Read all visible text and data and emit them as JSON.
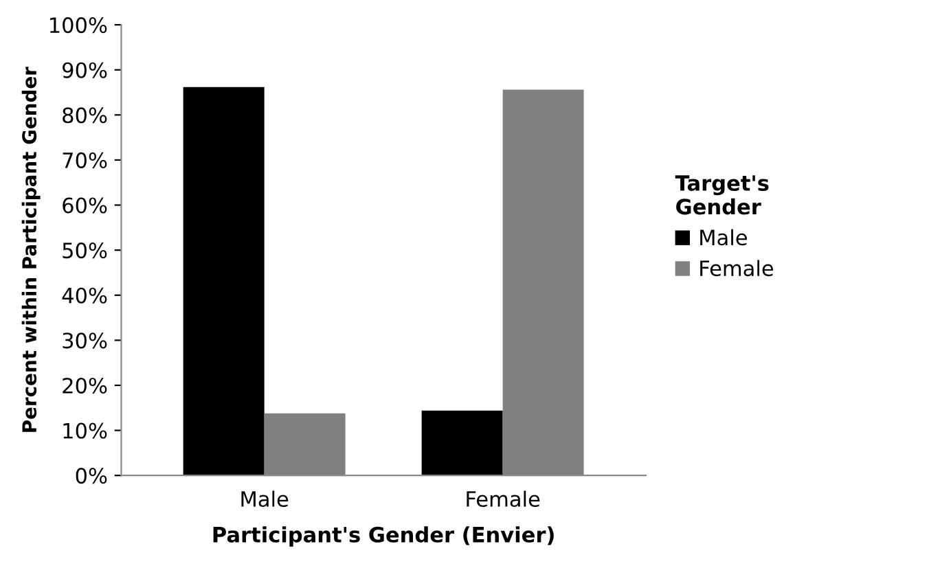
{
  "chart_data": {
    "type": "bar",
    "xlabel": "Participant's Gender (Envier)",
    "ylabel": "Percent within Participant Gender",
    "legend_title": "Target's\nGender",
    "categories": [
      "Male",
      "Female"
    ],
    "series": [
      {
        "name": "Male",
        "color": "#000000",
        "values": [
          86.2,
          14.4
        ]
      },
      {
        "name": "Female",
        "color": "#808080",
        "values": [
          13.8,
          85.6
        ]
      }
    ],
    "ylim": [
      0,
      100
    ],
    "yticks": [
      {
        "value": 0,
        "label": "0%"
      },
      {
        "value": 10,
        "label": "10%"
      },
      {
        "value": 20,
        "label": "20%"
      },
      {
        "value": 30,
        "label": "30%"
      },
      {
        "value": 40,
        "label": "40%"
      },
      {
        "value": 50,
        "label": "50%"
      },
      {
        "value": 60,
        "label": "60%"
      },
      {
        "value": 70,
        "label": "70%"
      },
      {
        "value": 80,
        "label": "80%"
      },
      {
        "value": 90,
        "label": "90%"
      },
      {
        "value": 100,
        "label": "100%"
      }
    ],
    "grid": false,
    "legend": "right"
  }
}
